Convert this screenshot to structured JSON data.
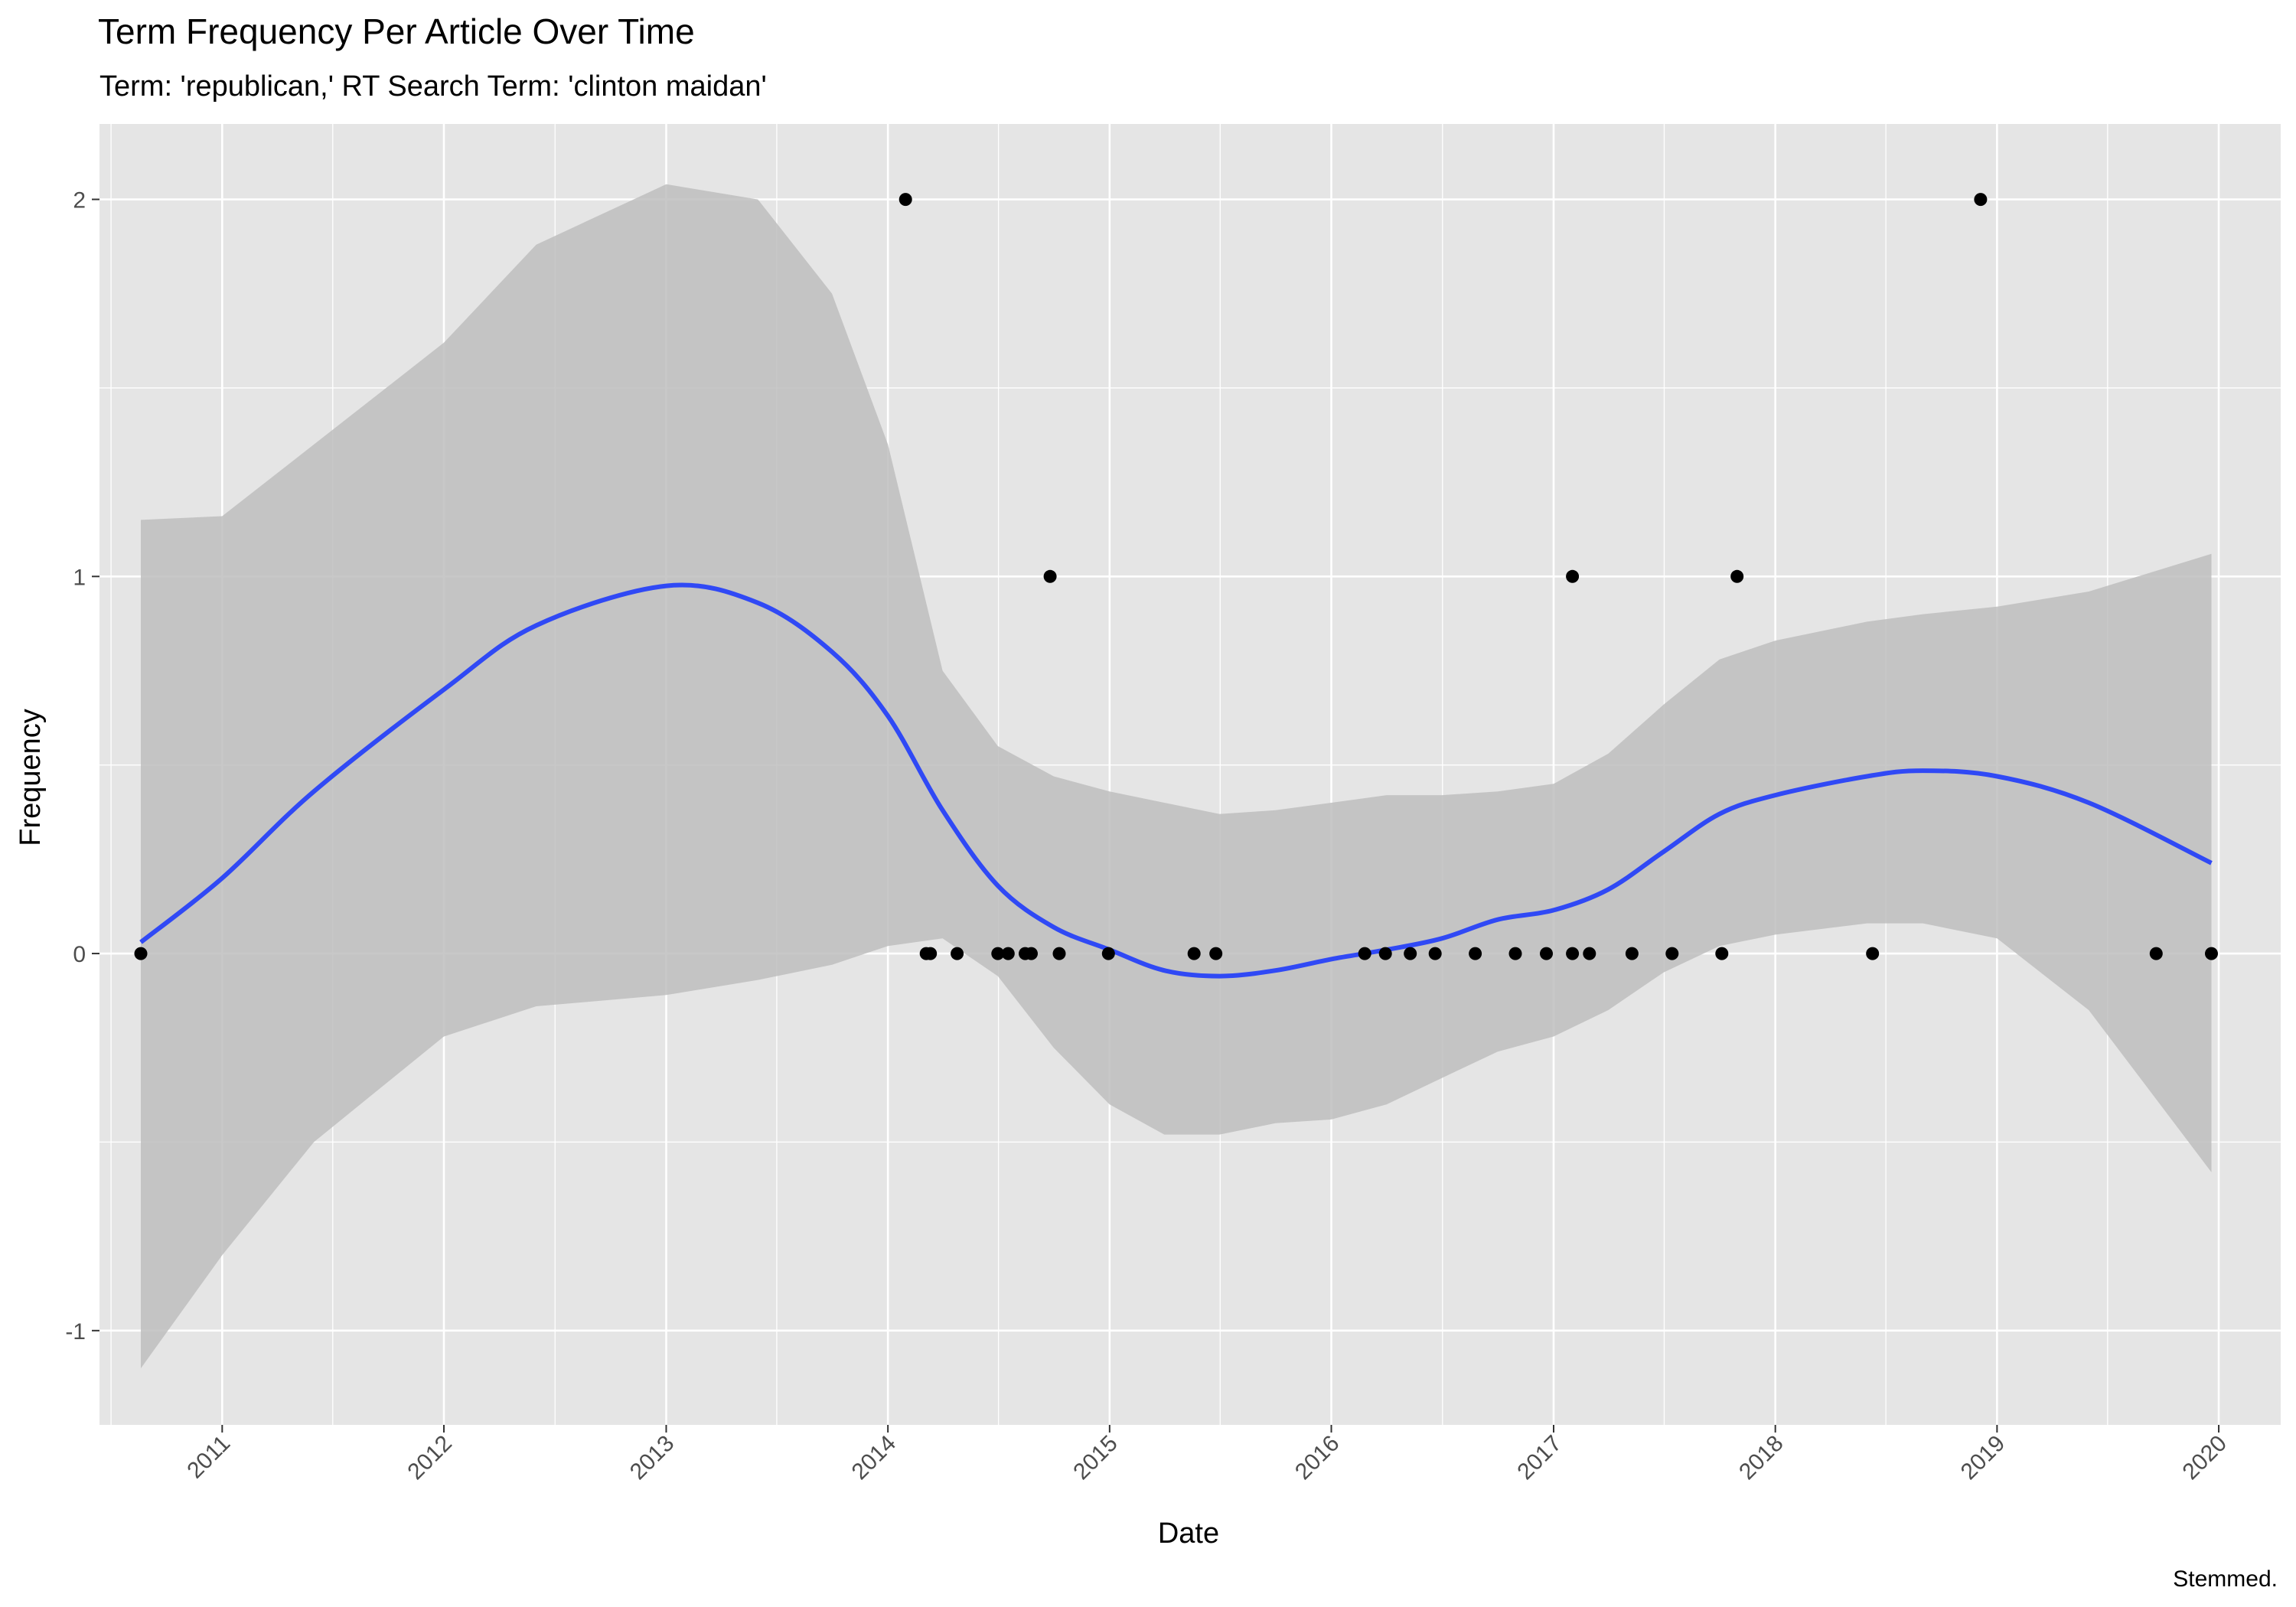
{
  "chart_data": {
    "type": "scatter",
    "title": "Term Frequency Per Article Over Time",
    "subtitle": "Term: 'republican,' RT Search Term: 'clinton maidan'",
    "xlabel": "Date",
    "ylabel": "Frequency",
    "caption": "Stemmed.",
    "x_ticks": [
      "2011",
      "2012",
      "2013",
      "2014",
      "2015",
      "2016",
      "2017",
      "2018",
      "2019",
      "2020"
    ],
    "y_ticks": [
      "-1",
      "0",
      "1",
      "2"
    ],
    "xlim": [
      "2010-06-13",
      "2020-04-12"
    ],
    "ylim": [
      -1.25,
      2.2
    ],
    "grid": true,
    "colors": {
      "panel": "#e5e5e5",
      "grid": "#ffffff",
      "point": "#000000",
      "smooth_line": "#3049f5",
      "ribbon": "#bebebe"
    },
    "points": [
      {
        "date": "2010-08-20",
        "y": 0
      },
      {
        "date": "2014-01-30",
        "y": 2
      },
      {
        "date": "2014-03-05",
        "y": 0
      },
      {
        "date": "2014-03-12",
        "y": 0
      },
      {
        "date": "2014-04-25",
        "y": 0
      },
      {
        "date": "2014-07-01",
        "y": 0
      },
      {
        "date": "2014-07-18",
        "y": 0
      },
      {
        "date": "2014-08-15",
        "y": 0
      },
      {
        "date": "2014-08-25",
        "y": 0
      },
      {
        "date": "2014-09-25",
        "y": 1
      },
      {
        "date": "2014-10-10",
        "y": 0
      },
      {
        "date": "2014-12-30",
        "y": 0
      },
      {
        "date": "2015-05-20",
        "y": 0
      },
      {
        "date": "2015-06-25",
        "y": 0
      },
      {
        "date": "2016-02-25",
        "y": 0
      },
      {
        "date": "2016-03-30",
        "y": 0
      },
      {
        "date": "2016-05-10",
        "y": 0
      },
      {
        "date": "2016-06-20",
        "y": 0
      },
      {
        "date": "2016-08-25",
        "y": 0
      },
      {
        "date": "2016-10-30",
        "y": 0
      },
      {
        "date": "2016-12-20",
        "y": 0
      },
      {
        "date": "2017-02-01",
        "y": 1
      },
      {
        "date": "2017-02-01",
        "y": 0
      },
      {
        "date": "2017-03-01",
        "y": 0
      },
      {
        "date": "2017-05-10",
        "y": 0
      },
      {
        "date": "2017-07-15",
        "y": 0
      },
      {
        "date": "2017-10-05",
        "y": 0
      },
      {
        "date": "2017-10-30",
        "y": 1
      },
      {
        "date": "2018-06-10",
        "y": 0
      },
      {
        "date": "2018-12-05",
        "y": 2
      },
      {
        "date": "2019-09-20",
        "y": 0
      },
      {
        "date": "2019-12-20",
        "y": 0
      }
    ],
    "smooth": {
      "dates": [
        "2010-08-20",
        "2011-01-01",
        "2011-06-01",
        "2012-01-01",
        "2012-06-01",
        "2013-01-01",
        "2013-06-01",
        "2013-10-01",
        "2014-01-01",
        "2014-04-01",
        "2014-07-01",
        "2014-10-01",
        "2015-01-01",
        "2015-04-01",
        "2015-07-01",
        "2015-10-01",
        "2016-01-01",
        "2016-04-01",
        "2016-07-01",
        "2016-10-01",
        "2017-01-01",
        "2017-04-01",
        "2017-07-01",
        "2017-10-01",
        "2018-01-01",
        "2018-06-01",
        "2018-09-01",
        "2019-01-01",
        "2019-06-01",
        "2019-12-20"
      ],
      "y": [
        0.03,
        0.2,
        0.43,
        0.7,
        0.87,
        0.975,
        0.93,
        0.8,
        0.63,
        0.38,
        0.18,
        0.07,
        0.01,
        -0.045,
        -0.06,
        -0.045,
        -0.015,
        0.01,
        0.04,
        0.09,
        0.115,
        0.17,
        0.27,
        0.37,
        0.42,
        0.47,
        0.485,
        0.47,
        0.4,
        0.24
      ],
      "ymin": [
        -1.1,
        -0.8,
        -0.5,
        -0.22,
        -0.14,
        -0.11,
        -0.07,
        -0.03,
        0.02,
        0.04,
        -0.06,
        -0.25,
        -0.4,
        -0.48,
        -0.48,
        -0.45,
        -0.44,
        -0.4,
        -0.33,
        -0.26,
        -0.22,
        -0.15,
        -0.05,
        0.02,
        0.05,
        0.08,
        0.08,
        0.04,
        -0.15,
        -0.58
      ],
      "ymax": [
        1.15,
        1.16,
        1.35,
        1.62,
        1.88,
        2.04,
        2.0,
        1.75,
        1.35,
        0.75,
        0.55,
        0.47,
        0.43,
        0.4,
        0.37,
        0.38,
        0.4,
        0.42,
        0.42,
        0.43,
        0.45,
        0.53,
        0.66,
        0.78,
        0.83,
        0.88,
        0.9,
        0.92,
        0.96,
        1.06
      ]
    }
  }
}
